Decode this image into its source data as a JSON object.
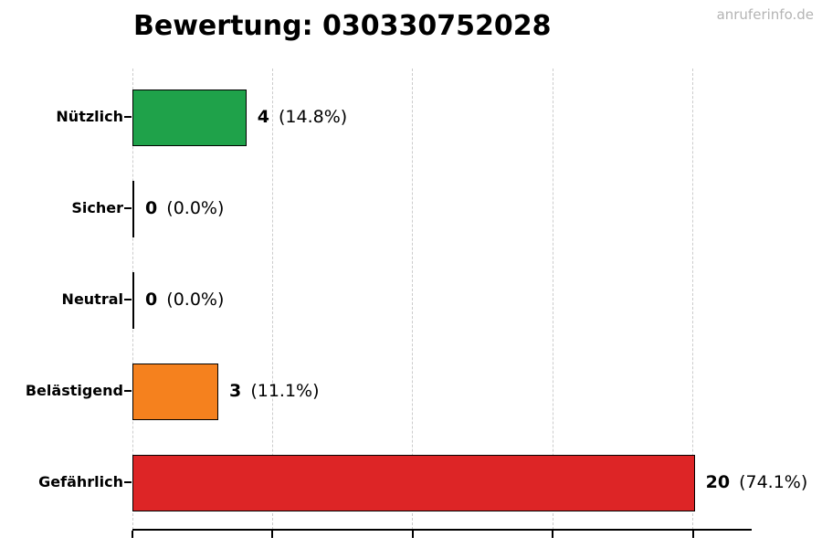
{
  "chart_data": {
    "type": "bar",
    "orientation": "horizontal",
    "title": "Bewertung: 030330752028",
    "watermark": "anruferinfo.de",
    "categories": [
      "Nützlich",
      "Sicher",
      "Neutral",
      "Belästigend",
      "Gefährlich"
    ],
    "values": [
      4,
      0,
      0,
      3,
      20
    ],
    "rows": [
      {
        "label": "Nützlich",
        "value": 4,
        "value_str": "4",
        "pct_label": "(14.8%)",
        "color": "#1fa24a"
      },
      {
        "label": "Sicher",
        "value": 0,
        "value_str": "0",
        "pct_label": "(0.0%)",
        "color": ""
      },
      {
        "label": "Neutral",
        "value": 0,
        "value_str": "0",
        "pct_label": "(0.0%)",
        "color": ""
      },
      {
        "label": "Belästigend",
        "value": 3,
        "value_str": "3",
        "pct_label": "(11.1%)",
        "color": "#f5811e"
      },
      {
        "label": "Gefährlich",
        "value": 20,
        "value_str": "20",
        "pct_label": "(74.1%)",
        "color": "#dd2526"
      }
    ],
    "x_ticks": [
      0,
      5,
      10,
      15,
      20
    ],
    "xlim": [
      0,
      22.1
    ],
    "grid": "vertical-dashed",
    "gridline_color": "#cccccc",
    "bar_edge_color": "#000000",
    "watermark_color": "#b4b4b4"
  }
}
